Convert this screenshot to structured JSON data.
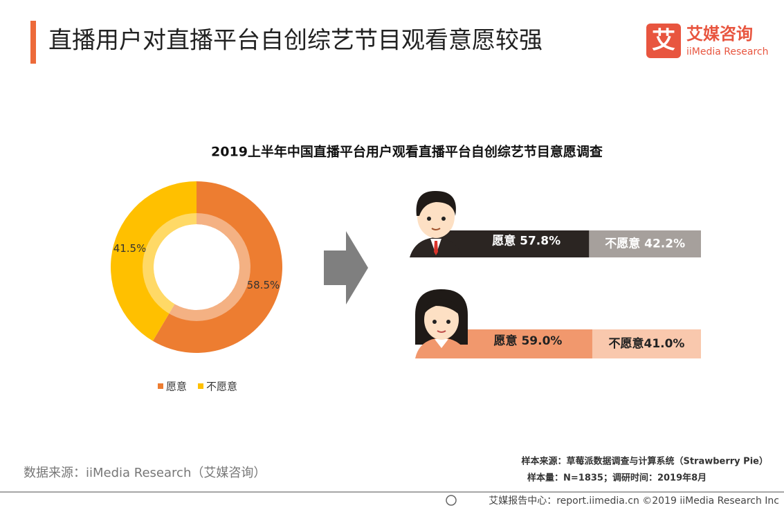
{
  "header": {
    "title": "直播用户对直播平台自创综艺节目观看意愿较强",
    "logo_mark": "艾",
    "logo_cn": "艾媒咨询",
    "logo_en": "iiMedia Research"
  },
  "chart_data": [
    {
      "type": "pie",
      "title": "2019上半年中国直播平台用户观看直播平台自创综艺节目意愿调查",
      "categories": [
        "愿意",
        "不愿意"
      ],
      "values": [
        58.5,
        41.5
      ],
      "value_labels": [
        "58.5%",
        "41.5%"
      ],
      "colors": [
        "#ed7d31",
        "#ffc000"
      ],
      "legend": "bottom"
    },
    {
      "type": "bar",
      "orientation": "horizontal",
      "stacked": true,
      "categories": [
        null,
        null
      ],
      "xlim": [
        0,
        100
      ],
      "series": [
        {
          "colors": [
            "#2b2522",
            "#f1986d"
          ],
          "values": [
            57.8,
            59.0
          ],
          "value_labels": [
            "愿意 57.8%",
            "愿意 59.0%"
          ],
          "label_colors": [
            "#ffffff",
            "#222222"
          ]
        },
        {
          "colors": [
            "#a6a09c",
            "#f9c8ad"
          ],
          "values": [
            42.2,
            41.0
          ],
          "value_labels": [
            "不愿意 42.2%",
            "不愿意41.0%"
          ],
          "label_colors": [
            "#ffffff",
            "#222222"
          ]
        }
      ]
    }
  ],
  "footer": {
    "source": "数据来源：iiMedia Research（艾媒咨询）",
    "sample_source": "样本来源：草莓派数据调查与计算系统（Strawberry Pie）",
    "sample_size": "样本量：N=1835；调研时间：2019年8月",
    "copyright": "艾媒报告中心：report.iimedia.cn  ©2019  iiMedia Research  Inc"
  }
}
